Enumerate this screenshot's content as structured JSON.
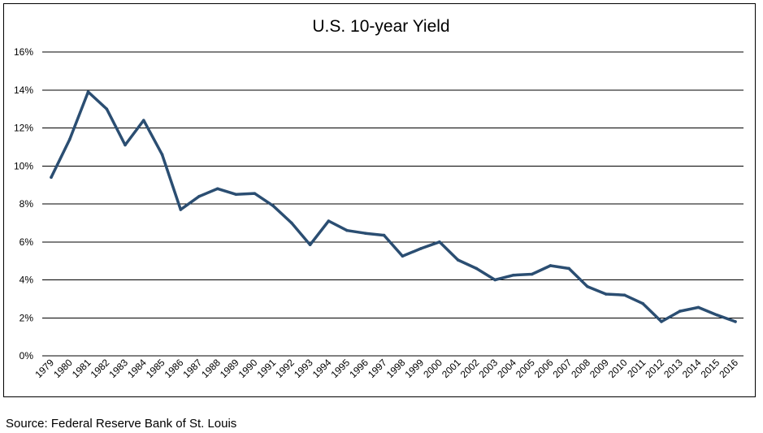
{
  "colors": {
    "line": "#2B4E72",
    "grid": "#000000",
    "text": "#000000",
    "background": "#FFFFFF"
  },
  "source": "Source: Federal Reserve Bank of St. Louis",
  "chart_data": {
    "type": "line",
    "title": "U.S. 10-year Yield",
    "xlabel": "",
    "ylabel": "",
    "y_tick_labels": [
      "0%",
      "2%",
      "4%",
      "6%",
      "8%",
      "10%",
      "12%",
      "14%",
      "16%"
    ],
    "ylim": [
      0,
      16
    ],
    "y_unit": "%",
    "grid": true,
    "legend": "none",
    "x": [
      "1979",
      "1980",
      "1981",
      "1982",
      "1983",
      "1984",
      "1985",
      "1986",
      "1987",
      "1988",
      "1989",
      "1990",
      "1991",
      "1992",
      "1993",
      "1994",
      "1995",
      "1996",
      "1997",
      "1998",
      "1999",
      "2000",
      "2001",
      "2002",
      "2003",
      "2004",
      "2005",
      "2006",
      "2007",
      "2008",
      "2009",
      "2010",
      "2011",
      "2012",
      "2013",
      "2014",
      "2015",
      "2016"
    ],
    "series": [
      {
        "values": [
          9.4,
          11.4,
          13.9,
          13.0,
          11.1,
          12.4,
          10.6,
          7.7,
          8.4,
          8.8,
          8.5,
          8.55,
          7.9,
          7.0,
          5.85,
          7.1,
          6.6,
          6.45,
          6.35,
          5.25,
          5.65,
          6.0,
          5.05,
          4.6,
          4.0,
          4.25,
          4.3,
          4.75,
          4.6,
          3.65,
          3.25,
          3.2,
          2.75,
          1.8,
          2.35,
          2.55,
          2.15,
          1.8
        ]
      }
    ]
  }
}
